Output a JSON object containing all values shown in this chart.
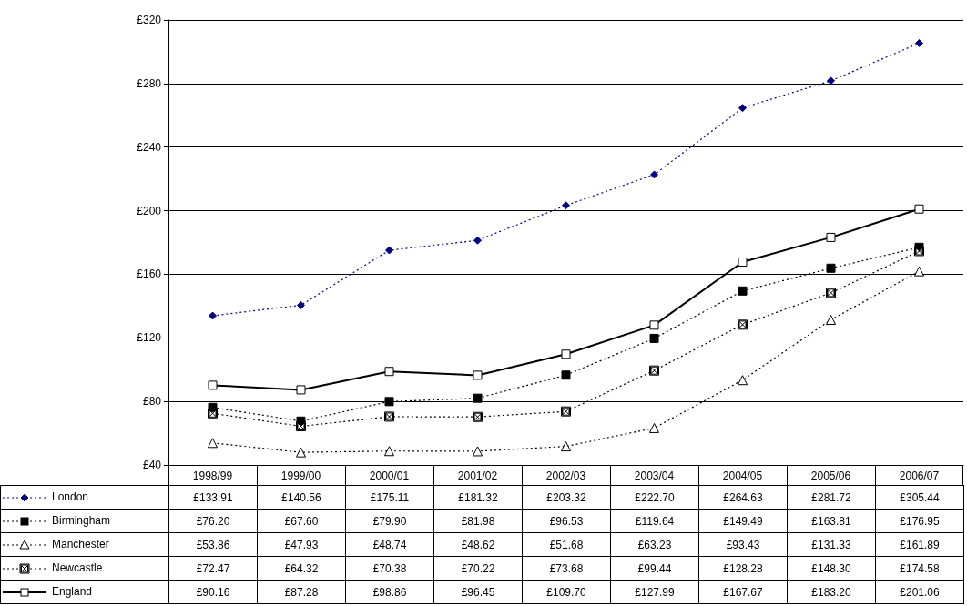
{
  "chart_data": {
    "type": "line",
    "categories": [
      "1998/99",
      "1999/00",
      "2000/01",
      "2001/02",
      "2002/03",
      "2003/04",
      "2004/05",
      "2005/06",
      "2006/07"
    ],
    "ylim": [
      40,
      320
    ],
    "yticks": [
      {
        "value": 40,
        "label": "£40"
      },
      {
        "value": 80,
        "label": "£80"
      },
      {
        "value": 120,
        "label": "£120"
      },
      {
        "value": 160,
        "label": "£160"
      },
      {
        "value": 200,
        "label": "£200"
      },
      {
        "value": 240,
        "label": "£240"
      },
      {
        "value": 280,
        "label": "£280"
      },
      {
        "value": 320,
        "label": "£320"
      }
    ],
    "grid": "y",
    "legend": "bottom left",
    "series": [
      {
        "name": "London",
        "color": "#000080",
        "marker": "diamond",
        "line_style": "dotted",
        "values": [
          133.91,
          140.56,
          175.11,
          181.32,
          203.32,
          222.7,
          264.63,
          281.72,
          305.44
        ],
        "value_labels": [
          "£133.91",
          "£140.56",
          "£175.11",
          "£181.32",
          "£203.32",
          "£222.70",
          "£264.63",
          "£281.72",
          "£305.44"
        ]
      },
      {
        "name": "Birmingham",
        "color": "#000000",
        "marker": "square",
        "line_style": "dotted",
        "values": [
          76.2,
          67.6,
          79.9,
          81.98,
          96.53,
          119.64,
          149.49,
          163.81,
          176.95
        ],
        "value_labels": [
          "£76.20",
          "£67.60",
          "£79.90",
          "£81.98",
          "£96.53",
          "£119.64",
          "£149.49",
          "£163.81",
          "£176.95"
        ]
      },
      {
        "name": "Manchester",
        "color": "#000000",
        "marker": "triangle",
        "line_style": "dotted",
        "values": [
          53.86,
          47.93,
          48.74,
          48.62,
          51.68,
          63.23,
          93.43,
          131.33,
          161.89
        ],
        "value_labels": [
          "£53.86",
          "£47.93",
          "£48.74",
          "£48.62",
          "£51.68",
          "£63.23",
          "£93.43",
          "£131.33",
          "£161.89"
        ]
      },
      {
        "name": "Newcastle",
        "color": "#000000",
        "marker": "cross",
        "line_style": "dotted",
        "values": [
          72.47,
          64.32,
          70.38,
          70.22,
          73.68,
          99.44,
          128.28,
          148.3,
          174.58
        ],
        "value_labels": [
          "£72.47",
          "£64.32",
          "£70.38",
          "£70.22",
          "£73.68",
          "£99.44",
          "£128.28",
          "£148.30",
          "£174.58"
        ]
      },
      {
        "name": "England",
        "color": "#000000",
        "marker": "square",
        "line_style": "solid",
        "values": [
          90.16,
          87.28,
          98.86,
          96.45,
          109.7,
          127.99,
          167.67,
          183.2,
          201.06
        ],
        "value_labels": [
          "£90.16",
          "£87.28",
          "£98.86",
          "£96.45",
          "£109.70",
          "£127.99",
          "£167.67",
          "£183.20",
          "£201.06"
        ]
      }
    ]
  }
}
